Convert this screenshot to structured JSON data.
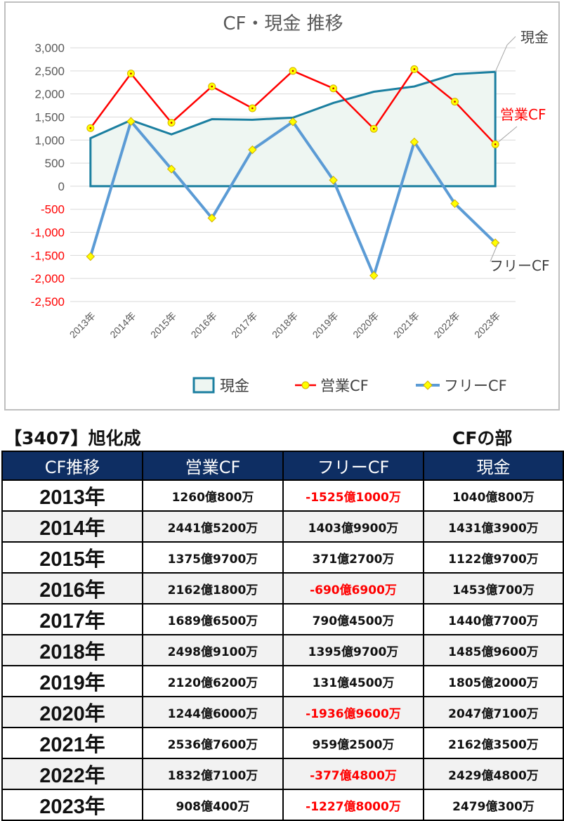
{
  "chart_data": {
    "type": "line",
    "title": "CF・現金 推移",
    "categories": [
      "2013年",
      "2014年",
      "2015年",
      "2016年",
      "2017年",
      "2018年",
      "2019年",
      "2020年",
      "2021年",
      "2022年",
      "2023年"
    ],
    "ylim": [
      -2500,
      3000
    ],
    "yticks": [
      3000,
      2500,
      2000,
      1500,
      1000,
      500,
      0,
      -500,
      -1000,
      -1500,
      -2000,
      -2500
    ],
    "ytick_labels": [
      "3,000",
      "2,500",
      "2,000",
      "1,500",
      "1,000",
      "500",
      "0",
      "-500",
      "-1,000",
      "-1,500",
      "-2,000",
      "-2,500"
    ],
    "grid": true,
    "legend_position": "bottom",
    "series": [
      {
        "key": "cash",
        "name": "現金",
        "kind": "area",
        "color": "#1b7fa0",
        "fill": "#eef6f2",
        "values": [
          1040.08,
          1431.39,
          1122.97,
          1453.07,
          1440.77,
          1485.96,
          1805.2,
          2047.71,
          2162.35,
          2429.48,
          2479.03
        ]
      },
      {
        "key": "operating",
        "name": "営業CF",
        "kind": "line",
        "color": "#ff0000",
        "marker": "circle",
        "values": [
          1260.08,
          2441.52,
          1375.97,
          2162.18,
          1689.65,
          2498.91,
          2120.62,
          1244.6,
          2536.76,
          1832.71,
          908.04
        ]
      },
      {
        "key": "free",
        "name": "フリーCF",
        "kind": "line",
        "color": "#5b9bd5",
        "marker": "diamond",
        "values": [
          -1525.1,
          1403.99,
          371.27,
          -690.69,
          790.45,
          1395.97,
          131.45,
          -1936.96,
          959.25,
          -377.48,
          -1227.8
        ]
      }
    ],
    "callouts": {
      "cash": "現金",
      "operating": "営業CF",
      "free": "フリーCF"
    }
  },
  "legend": {
    "cash": "現金",
    "operating": "営業CF",
    "free": "フリーCF"
  },
  "header": {
    "company": "【3407】旭化成",
    "section": "CFの部"
  },
  "table": {
    "columns": [
      "CF推移",
      "営業CF",
      "フリーCF",
      "現金"
    ],
    "rows": [
      {
        "year": "2013年",
        "operating": "1260億800万",
        "free": "-1525億1000万",
        "cash": "1040億800万",
        "free_negative": true
      },
      {
        "year": "2014年",
        "operating": "2441億5200万",
        "free": "1403億9900万",
        "cash": "1431億3900万",
        "free_negative": false
      },
      {
        "year": "2015年",
        "operating": "1375億9700万",
        "free": "371億2700万",
        "cash": "1122億9700万",
        "free_negative": false
      },
      {
        "year": "2016年",
        "operating": "2162億1800万",
        "free": "-690億6900万",
        "cash": "1453億700万",
        "free_negative": true
      },
      {
        "year": "2017年",
        "operating": "1689億6500万",
        "free": "790億4500万",
        "cash": "1440億7700万",
        "free_negative": false
      },
      {
        "year": "2018年",
        "operating": "2498億9100万",
        "free": "1395億9700万",
        "cash": "1485億9600万",
        "free_negative": false
      },
      {
        "year": "2019年",
        "operating": "2120億6200万",
        "free": "131億4500万",
        "cash": "1805億2000万",
        "free_negative": false
      },
      {
        "year": "2020年",
        "operating": "1244億6000万",
        "free": "-1936億9600万",
        "cash": "2047億7100万",
        "free_negative": true
      },
      {
        "year": "2021年",
        "operating": "2536億7600万",
        "free": "959億2500万",
        "cash": "2162億3500万",
        "free_negative": false
      },
      {
        "year": "2022年",
        "operating": "1832億7100万",
        "free": "-377億4800万",
        "cash": "2429億4800万",
        "free_negative": true
      },
      {
        "year": "2023年",
        "operating": "908億400万",
        "free": "-1227億8000万",
        "cash": "2479億300万",
        "free_negative": true
      }
    ]
  }
}
